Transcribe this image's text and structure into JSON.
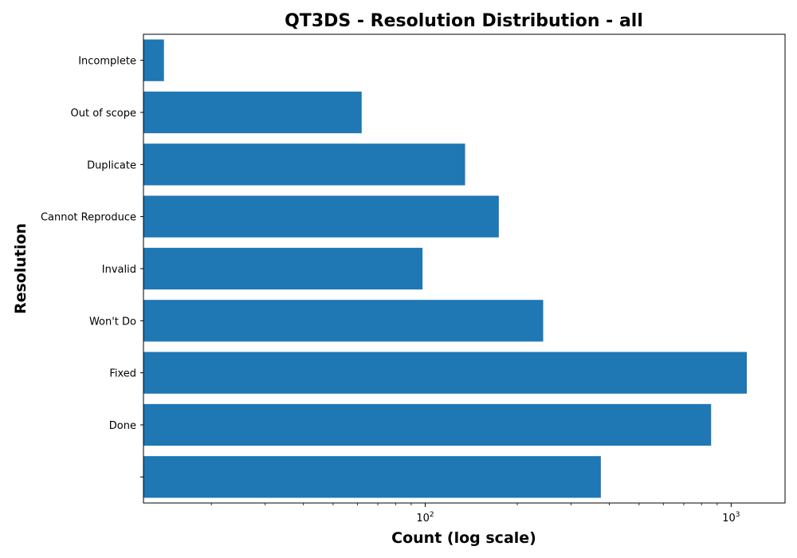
{
  "chart_data": {
    "type": "bar",
    "orientation": "horizontal",
    "title": "QT3DS - Resolution Distribution - all",
    "xlabel": "Count (log scale)",
    "ylabel": "Resolution",
    "x_scale": "log",
    "xlim": [
      12,
      1500
    ],
    "x_major_ticks": [
      {
        "value": 100,
        "base": "10",
        "exp": "2"
      },
      {
        "value": 1000,
        "base": "10",
        "exp": "3"
      }
    ],
    "categories": [
      "",
      "Done",
      "Fixed",
      "Won't Do",
      "Invalid",
      "Cannot Reproduce",
      "Duplicate",
      "Out of scope",
      "Incomplete"
    ],
    "values": [
      375,
      860,
      1125,
      243,
      98,
      174,
      135,
      62,
      14
    ],
    "bar_color": "#1f77b4",
    "grid": false,
    "legend": "none"
  }
}
